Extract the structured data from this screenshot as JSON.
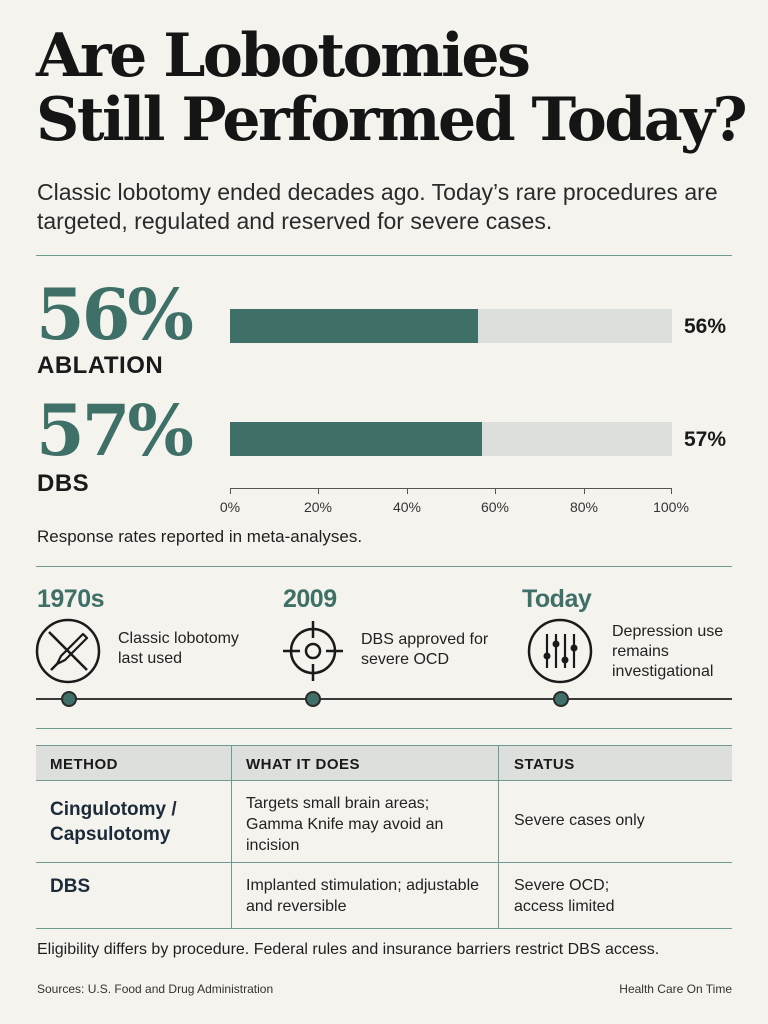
{
  "title_line1": "Are Lobotomies",
  "title_line2": "Still Performed Today?",
  "subtitle": "Classic lobotomy ended decades ago. Today’s rare procedures are targeted, regulated and reserved for severe cases.",
  "stats": [
    {
      "big": "56%",
      "label": "ABLATION",
      "value": 56,
      "value_label": "56%"
    },
    {
      "big": "57%",
      "label": "DBS",
      "value": 57,
      "value_label": "57%"
    }
  ],
  "axis_ticks": [
    "0%",
    "20%",
    "40%",
    "60%",
    "80%",
    "100%"
  ],
  "caption": "Response rates reported in meta-analyses.",
  "timeline": [
    {
      "year": "1970s",
      "icon": "crossed-scalpel-icon",
      "text": "Classic lobotomy last used"
    },
    {
      "year": "2009",
      "icon": "target-crosshair-icon",
      "text": "DBS approved for severe OCD"
    },
    {
      "year": "Today",
      "icon": "sliders-icon",
      "text": "Depression use remains investigational"
    }
  ],
  "table": {
    "headers": [
      "METHOD",
      "WHAT IT DOES",
      "STATUS"
    ],
    "rows": [
      {
        "method": "Cingulotomy / Capsulotomy",
        "what": "Targets small brain areas; Gamma Knife may avoid an incision",
        "status": "Severe cases only"
      },
      {
        "method": "DBS",
        "what": "Implanted stimulation; adjustable and reversible",
        "status": "Severe OCD; access limited"
      }
    ]
  },
  "footer_note": "Eligibility differs by procedure. Federal rules and insurance barriers restrict DBS access.",
  "sources": "Sources: U.S. Food and Drug Administration",
  "brand": "Health Care On Time",
  "colors": {
    "accent": "#3f7068",
    "track": "#dcdfdb",
    "background": "#f5f3ee",
    "rule": "#6f9a92"
  }
}
